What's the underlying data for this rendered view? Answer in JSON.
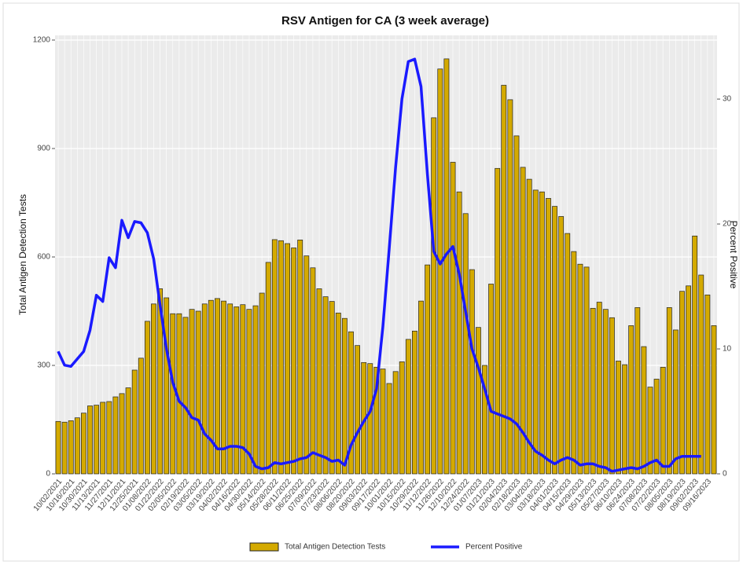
{
  "chart_data": {
    "type": "bar-line",
    "title": "RSV Antigen for CA (3 week average)",
    "y_label": "Total Antigen Detection Tests",
    "y2_label": "Percent Positive",
    "categories": [
      "10/02/2021",
      null,
      "10/16/2021",
      null,
      "10/30/2021",
      null,
      "11/13/2021",
      null,
      "11/27/2021",
      null,
      "12/11/2021",
      null,
      "12/25/2021",
      null,
      "01/08/2022",
      null,
      "01/22/2022",
      null,
      "02/05/2022",
      null,
      "02/19/2022",
      null,
      "03/05/2022",
      null,
      "03/19/2022",
      null,
      "04/02/2022",
      null,
      "04/16/2022",
      null,
      "04/30/2022",
      null,
      "05/14/2022",
      null,
      "05/28/2022",
      null,
      "06/11/2022",
      null,
      "06/25/2022",
      null,
      "07/09/2022",
      null,
      "07/23/2022",
      null,
      "08/06/2022",
      null,
      "08/20/2022",
      null,
      "09/03/2022",
      null,
      "09/17/2022",
      null,
      "10/01/2022",
      null,
      "10/15/2022",
      null,
      "10/29/2022",
      null,
      "11/12/2022",
      null,
      "11/26/2022",
      null,
      "12/10/2022",
      null,
      "12/24/2022",
      null,
      "01/07/2023",
      null,
      "01/21/2023",
      null,
      "02/04/2023",
      null,
      "02/18/2023",
      null,
      "03/04/2023",
      null,
      "03/18/2023",
      null,
      "04/01/2023",
      null,
      "04/15/2023",
      null,
      "04/29/2023",
      null,
      "05/13/2023",
      null,
      "05/27/2023",
      null,
      "06/10/2023",
      null,
      "06/24/2023",
      null,
      "07/08/2023",
      null,
      "07/22/2023",
      null,
      "08/05/2023",
      null,
      "08/19/2023",
      null,
      "09/02/2023",
      null,
      "09/16/2023",
      null
    ],
    "series": [
      {
        "name": "Total Antigen Detection Tests",
        "type": "bar",
        "color": "#d4aa00",
        "values": [
          145,
          143,
          147,
          155,
          168,
          188,
          190,
          198,
          200,
          213,
          222,
          238,
          287,
          320,
          422,
          470,
          512,
          487,
          443,
          443,
          433,
          455,
          450,
          470,
          480,
          485,
          478,
          470,
          462,
          468,
          455,
          465,
          500,
          585,
          648,
          645,
          637,
          625,
          647,
          603,
          570,
          512,
          490,
          477,
          445,
          430,
          393,
          355,
          308,
          305,
          295,
          290,
          250,
          283,
          310,
          372,
          395,
          478,
          578,
          985,
          1120,
          1148,
          862,
          780,
          720,
          565,
          405,
          300,
          525,
          845,
          1075,
          1035,
          935,
          848,
          815,
          785,
          780,
          762,
          740,
          712,
          665,
          615,
          580,
          572,
          458,
          475,
          455,
          432,
          312,
          302,
          410,
          460,
          352,
          240,
          262,
          295,
          460,
          398,
          505,
          520,
          658,
          550,
          495,
          410
        ]
      },
      {
        "name": "Percent Positive",
        "type": "line",
        "axis": "y2",
        "color": "#1a1aff",
        "values": [
          9.8,
          8.7,
          8.6,
          9.2,
          9.8,
          11.5,
          14.3,
          13.8,
          17.3,
          16.5,
          20.3,
          18.9,
          20.2,
          20.1,
          19.3,
          17.2,
          13.5,
          10.0,
          7.3,
          5.8,
          5.3,
          4.5,
          4.3,
          3.2,
          2.7,
          2.0,
          2.0,
          2.2,
          2.2,
          2.1,
          1.6,
          0.6,
          0.4,
          0.5,
          0.9,
          0.8,
          0.9,
          1.0,
          1.2,
          1.3,
          1.7,
          1.5,
          1.3,
          1.0,
          1.1,
          0.7,
          2.3,
          3.3,
          4.2,
          5.0,
          6.8,
          11.8,
          18.0,
          24.5,
          30.0,
          33.0,
          33.2,
          31.0,
          24.0,
          17.8,
          16.8,
          17.6,
          18.2,
          16.0,
          13.0,
          10.0,
          8.5,
          6.8,
          5.0,
          4.8,
          4.6,
          4.4,
          4.0,
          3.3,
          2.5,
          1.8,
          1.5,
          1.1,
          0.8,
          1.1,
          1.3,
          1.1,
          0.7,
          0.8,
          0.8,
          0.6,
          0.5,
          0.2,
          0.3,
          0.4,
          0.5,
          0.4,
          0.6,
          0.9,
          1.1,
          0.6,
          0.6,
          1.2,
          1.4,
          1.4,
          1.4,
          1.4,
          null,
          null
        ]
      }
    ],
    "ylim": [
      0,
      1213
    ],
    "yticks": [
      0,
      300,
      600,
      900,
      1200
    ],
    "y2lim": [
      0,
      35.1
    ],
    "y2ticks": [
      0,
      10,
      20,
      30
    ],
    "grid": true,
    "legend": "bottom"
  }
}
